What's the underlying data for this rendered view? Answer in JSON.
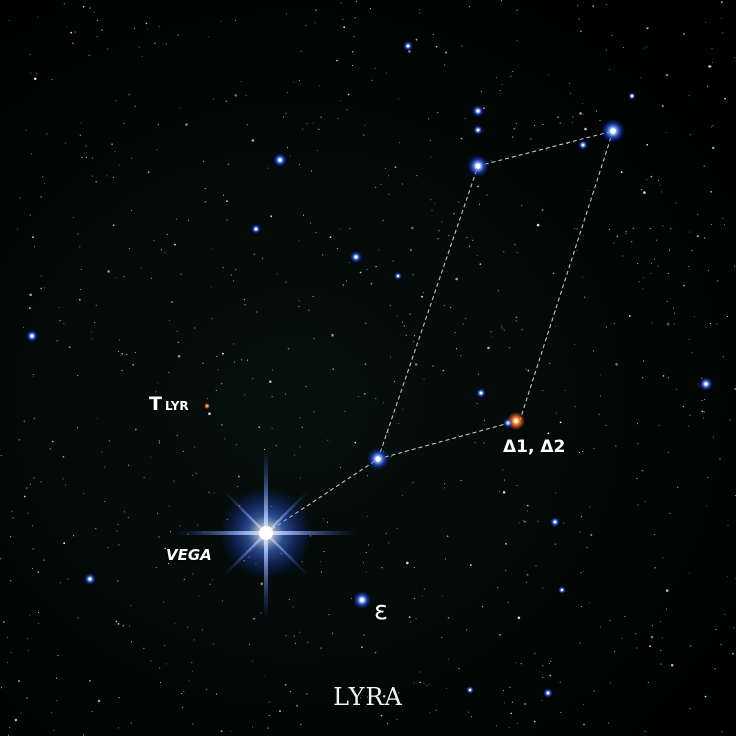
{
  "labels": {
    "t_lyr_main": "T",
    "t_lyr_sub": "LYR",
    "delta": "Δ1, Δ2",
    "vega": "VEGA",
    "epsilon": "ε",
    "constellation": "LYRA"
  },
  "colors": {
    "sky": "#000000",
    "line": "#e6e6e6",
    "bright_star_glow": "#3a7bff",
    "orange_star": "#ff8a3d",
    "text": "#ffffff"
  }
}
